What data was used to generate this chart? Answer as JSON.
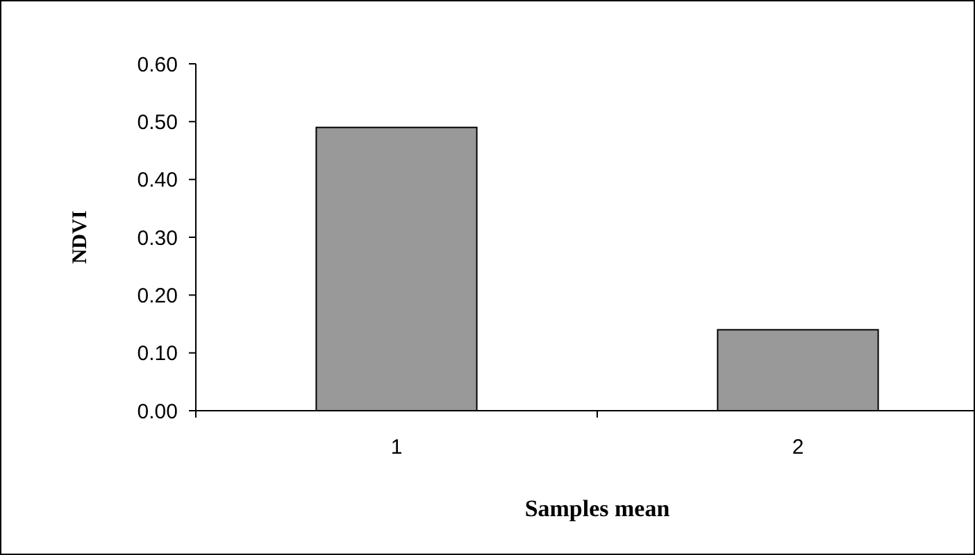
{
  "chart_data": {
    "type": "bar",
    "xlabel": "Samples mean",
    "ylabel": "NDVI",
    "categories": [
      "1",
      "2"
    ],
    "values": [
      0.49,
      0.14
    ],
    "color": "#999999",
    "ylim": [
      0,
      0.6
    ],
    "yticks": [
      {
        "value": 0,
        "label": "0.00"
      },
      {
        "value": 0.1,
        "label": "0.10"
      },
      {
        "value": 0.2,
        "label": "0.20"
      },
      {
        "value": 0.3,
        "label": "0.30"
      },
      {
        "value": 0.4,
        "label": "0.40"
      },
      {
        "value": 0.5,
        "label": "0.50"
      },
      {
        "value": 0.6,
        "label": "0.60"
      }
    ],
    "grid": false
  }
}
